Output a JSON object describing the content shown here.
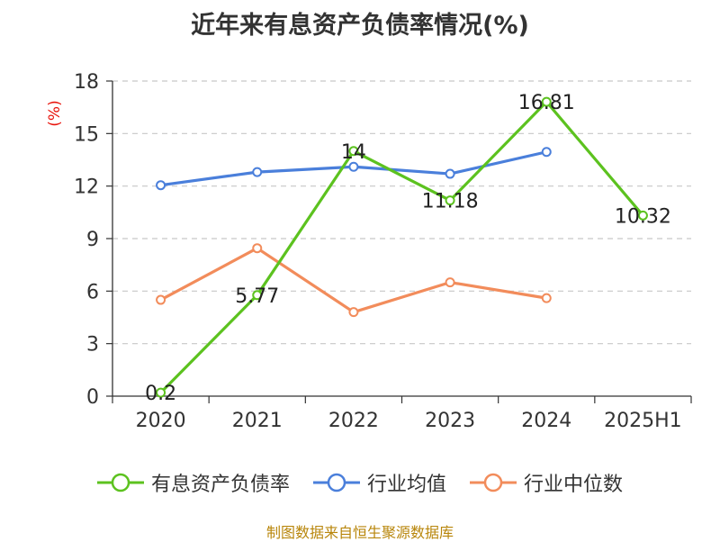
{
  "chart_data": {
    "type": "line",
    "title": "近年来有息资产负债率情况(%)",
    "ylabel": "(%)",
    "xlabel": "",
    "categories": [
      "2020",
      "2021",
      "2022",
      "2023",
      "2024",
      "2025H1"
    ],
    "ylim": [
      0,
      18
    ],
    "yticks": [
      0,
      3,
      6,
      9,
      12,
      15,
      18
    ],
    "grid": "horizontal dashed",
    "legend_position": "bottom",
    "series": [
      {
        "name": "有息资产负债率",
        "color": "#5cc21f",
        "values": [
          0.2,
          5.77,
          14,
          11.18,
          16.81,
          10.32
        ],
        "labels": [
          "0.2",
          "5.77",
          "14",
          "11.18",
          "16.81",
          "10.32"
        ]
      },
      {
        "name": "行业均值",
        "color": "#4a7fdb",
        "values": [
          12.05,
          12.8,
          13.1,
          12.7,
          13.95,
          null
        ]
      },
      {
        "name": "行业中位数",
        "color": "#f28c5b",
        "values": [
          5.5,
          8.45,
          4.8,
          6.5,
          5.6,
          null
        ]
      }
    ],
    "source": "制图数据来自恒生聚源数据库"
  }
}
